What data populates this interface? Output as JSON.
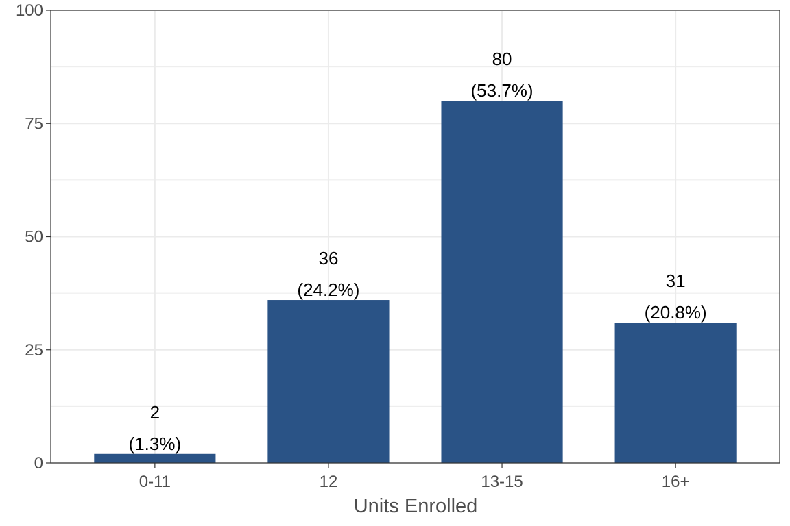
{
  "chart_data": {
    "type": "bar",
    "categories": [
      "0-11",
      "12",
      "13-15",
      "16+"
    ],
    "values": [
      2,
      36,
      80,
      31
    ],
    "percent_labels": [
      "(1.3%)",
      "(24.2%)",
      "(53.7%)",
      "(20.8%)"
    ],
    "count_labels": [
      "2",
      "36",
      "80",
      "31"
    ],
    "title": "",
    "xlabel": "Units Enrolled",
    "ylabel": "",
    "ylim": [
      0,
      100
    ],
    "y_ticks": [
      0,
      25,
      50,
      75,
      100
    ],
    "y_tick_labels": [
      "0",
      "25",
      "50",
      "75",
      "100"
    ],
    "grid": true,
    "legend": "none"
  },
  "colors": {
    "bar": "#2a5386",
    "grid": "#ebebeb",
    "panel_border": "#333333",
    "tick_text": "#4d4d4d",
    "label_text": "#000000"
  }
}
